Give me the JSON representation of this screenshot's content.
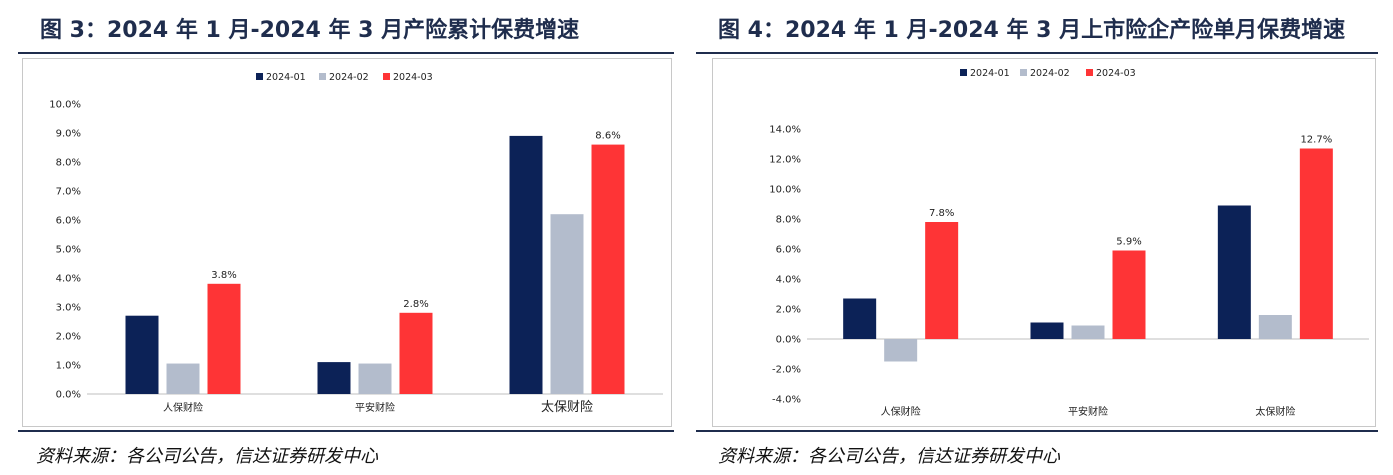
{
  "panels": [
    {
      "title": "图 3：2024 年 1 月-2024 年 3 月产险累计保费增速",
      "source": "资料来源：各公司公告，信达证券研发中心"
    },
    {
      "title": "图 4：2024 年 1 月-2024 年 3 月上市险企产险单月保费增速",
      "source": "资料来源：各公司公告，信达证券研发中心"
    }
  ],
  "colors": {
    "2024-01": "#0c2257",
    "2024-02": "#b3bccc",
    "2024-03": "#fe3436",
    "title": "#1f2d4d"
  },
  "chart_data": [
    {
      "type": "bar",
      "title": "",
      "categories": [
        "人保财险",
        "平安财险",
        "太保财险"
      ],
      "series": [
        {
          "name": "2024-01",
          "values": [
            2.7,
            1.1,
            8.9
          ]
        },
        {
          "name": "2024-02",
          "values": [
            1.05,
            1.05,
            6.2
          ]
        },
        {
          "name": "2024-03",
          "values": [
            3.8,
            2.8,
            8.6
          ]
        }
      ],
      "data_labels": {
        "series": "2024-03",
        "texts": [
          "3.8%",
          "2.8%",
          "8.6%"
        ]
      },
      "ylim": [
        0,
        10
      ],
      "yticks": [
        "0.0%",
        "1.0%",
        "2.0%",
        "3.0%",
        "4.0%",
        "5.0%",
        "6.0%",
        "7.0%",
        "8.0%",
        "9.0%",
        "10.0%"
      ],
      "legend": "top-center",
      "grid": false
    },
    {
      "type": "bar",
      "title": "",
      "categories": [
        "人保财险",
        "平安财险",
        "太保财险"
      ],
      "series": [
        {
          "name": "2024-01",
          "values": [
            2.7,
            1.1,
            8.9
          ]
        },
        {
          "name": "2024-02",
          "values": [
            -1.5,
            0.9,
            1.6
          ]
        },
        {
          "name": "2024-03",
          "values": [
            7.8,
            5.9,
            12.7
          ]
        }
      ],
      "data_labels": {
        "series": "2024-03",
        "texts": [
          "7.8%",
          "5.9%",
          "12.7%"
        ]
      },
      "ylim": [
        -4,
        14
      ],
      "yticks": [
        "-4.0%",
        "-2.0%",
        "0.0%",
        "2.0%",
        "4.0%",
        "6.0%",
        "8.0%",
        "10.0%",
        "12.0%",
        "14.0%"
      ],
      "legend": "top-center",
      "grid": false
    }
  ]
}
